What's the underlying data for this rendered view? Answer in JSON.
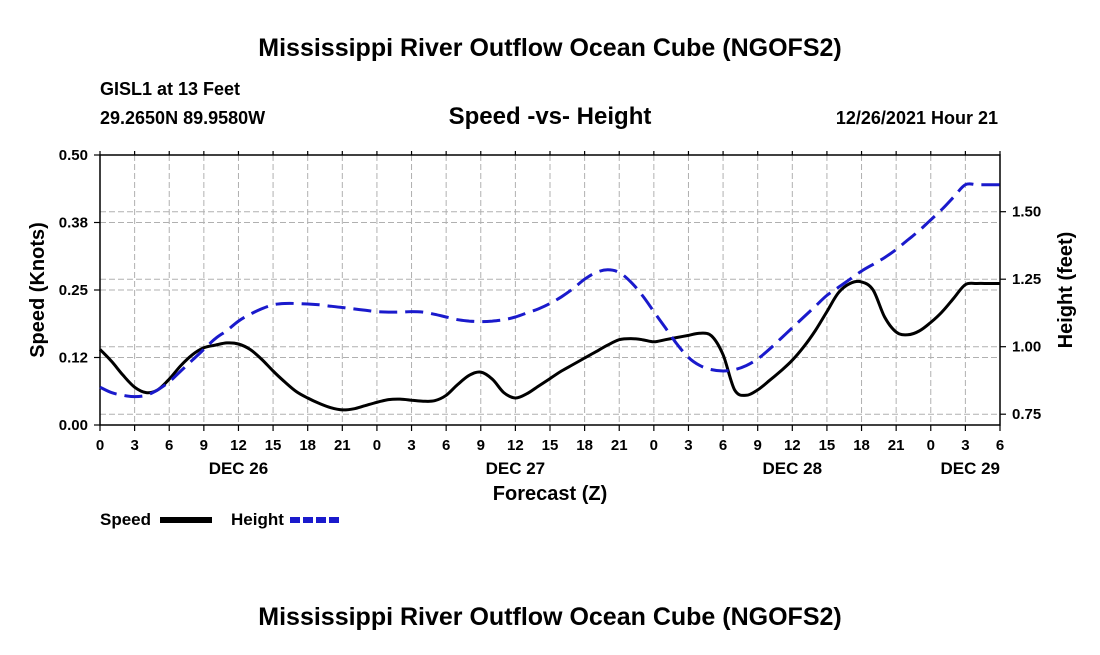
{
  "page": {
    "main_title": "Mississippi River Outflow Ocean Cube (NGOFS2)",
    "station": "GISL1 at 13 Feet",
    "coords": "29.2650N  89.9580W",
    "subtitle": "Speed -vs- Height",
    "run_time": "12/26/2021 Hour 21",
    "footer_title": "Mississippi River Outflow Ocean Cube (NGOFS2)"
  },
  "chart_data": {
    "type": "line",
    "title": "Speed -vs- Height",
    "xlabel": "Forecast (Z)",
    "ylabel": "Speed (Knots)",
    "y2label": "Height (feet)",
    "x_range_hours": [
      0,
      78
    ],
    "x_tick_labels": [
      "0",
      "3",
      "6",
      "9",
      "12",
      "15",
      "18",
      "21",
      "0",
      "3",
      "6",
      "9",
      "12",
      "15",
      "18",
      "21",
      "0",
      "3",
      "6",
      "9",
      "12",
      "15",
      "18",
      "21",
      "0",
      "3",
      "6"
    ],
    "date_labels": [
      {
        "hour": 12,
        "label": "DEC 26"
      },
      {
        "hour": 36,
        "label": "DEC 27"
      },
      {
        "hour": 60,
        "label": "DEC 28"
      },
      {
        "hour": 78,
        "label": "DEC 29"
      }
    ],
    "ylim": [
      0,
      0.5
    ],
    "y_ticks": [
      0,
      0.125,
      0.25,
      0.375,
      0.5
    ],
    "y_tick_labels": [
      "0.00",
      "0.12",
      "0.25",
      "0.38",
      "0.50"
    ],
    "y2lim": [
      0.71,
      1.71
    ],
    "y2_ticks": [
      0.75,
      1.0,
      1.25,
      1.5
    ],
    "y2_tick_labels": [
      "0.75",
      "1.00",
      "1.25",
      "1.50"
    ],
    "grid": true,
    "legend": [
      {
        "name": "Speed",
        "color": "#000000",
        "style": "solid"
      },
      {
        "name": "Height",
        "color": "#1a1acc",
        "style": "dashed"
      }
    ],
    "series": [
      {
        "name": "Speed",
        "axis": "left",
        "color": "#000000",
        "x": [
          0,
          1,
          2,
          3,
          4,
          5,
          6,
          7,
          8,
          9,
          10,
          11,
          12,
          13,
          14,
          15,
          16,
          17,
          18,
          19,
          20,
          21,
          22,
          23,
          24,
          25,
          26,
          27,
          28,
          29,
          30,
          31,
          32,
          33,
          34,
          35,
          36,
          37,
          38,
          39,
          40,
          41,
          42,
          43,
          44,
          45,
          46,
          47,
          48,
          49,
          50,
          51,
          52,
          53,
          54,
          55,
          56,
          57,
          58,
          59,
          60,
          61,
          62,
          63,
          64,
          65,
          66,
          67,
          68,
          69,
          70,
          71,
          72,
          73,
          74,
          75,
          76,
          77,
          78
        ],
        "values": [
          0.14,
          0.118,
          0.092,
          0.07,
          0.06,
          0.065,
          0.085,
          0.11,
          0.13,
          0.143,
          0.148,
          0.152,
          0.15,
          0.14,
          0.122,
          0.1,
          0.08,
          0.062,
          0.05,
          0.04,
          0.032,
          0.028,
          0.03,
          0.036,
          0.042,
          0.047,
          0.048,
          0.046,
          0.044,
          0.045,
          0.055,
          0.075,
          0.092,
          0.098,
          0.085,
          0.06,
          0.05,
          0.058,
          0.072,
          0.086,
          0.1,
          0.112,
          0.124,
          0.136,
          0.148,
          0.158,
          0.16,
          0.158,
          0.154,
          0.158,
          0.162,
          0.166,
          0.17,
          0.165,
          0.13,
          0.065,
          0.055,
          0.065,
          0.082,
          0.1,
          0.12,
          0.145,
          0.175,
          0.21,
          0.245,
          0.262,
          0.265,
          0.25,
          0.2,
          0.172,
          0.167,
          0.174,
          0.19,
          0.21,
          0.235,
          0.26,
          0.262,
          0.262,
          0.262
        ]
      },
      {
        "name": "Height",
        "axis": "right",
        "color": "#1a1acc",
        "x": [
          0,
          1,
          2,
          3,
          4,
          5,
          6,
          7,
          8,
          9,
          10,
          11,
          12,
          13,
          14,
          15,
          16,
          17,
          18,
          19,
          20,
          21,
          22,
          23,
          24,
          25,
          26,
          27,
          28,
          29,
          30,
          31,
          32,
          33,
          34,
          35,
          36,
          37,
          38,
          39,
          40,
          41,
          42,
          43,
          44,
          45,
          46,
          47,
          48,
          49,
          50,
          51,
          52,
          53,
          54,
          55,
          56,
          57,
          58,
          59,
          60,
          61,
          62,
          63,
          64,
          65,
          66,
          67,
          68,
          69,
          70,
          71,
          72,
          73,
          74,
          75,
          76,
          77,
          78
        ],
        "values": [
          0.85,
          0.83,
          0.82,
          0.815,
          0.82,
          0.84,
          0.87,
          0.91,
          0.95,
          0.99,
          1.03,
          1.06,
          1.095,
          1.12,
          1.14,
          1.155,
          1.16,
          1.16,
          1.158,
          1.155,
          1.15,
          1.145,
          1.14,
          1.135,
          1.13,
          1.128,
          1.128,
          1.13,
          1.128,
          1.12,
          1.11,
          1.1,
          1.095,
          1.093,
          1.095,
          1.1,
          1.11,
          1.125,
          1.14,
          1.16,
          1.185,
          1.215,
          1.25,
          1.275,
          1.285,
          1.275,
          1.24,
          1.19,
          1.13,
          1.07,
          1.01,
          0.96,
          0.93,
          0.915,
          0.91,
          0.915,
          0.93,
          0.955,
          0.99,
          1.03,
          1.07,
          1.11,
          1.15,
          1.19,
          1.22,
          1.25,
          1.28,
          1.305,
          1.33,
          1.36,
          1.395,
          1.43,
          1.47,
          1.51,
          1.555,
          1.6,
          1.6,
          1.6,
          1.6
        ]
      }
    ]
  }
}
